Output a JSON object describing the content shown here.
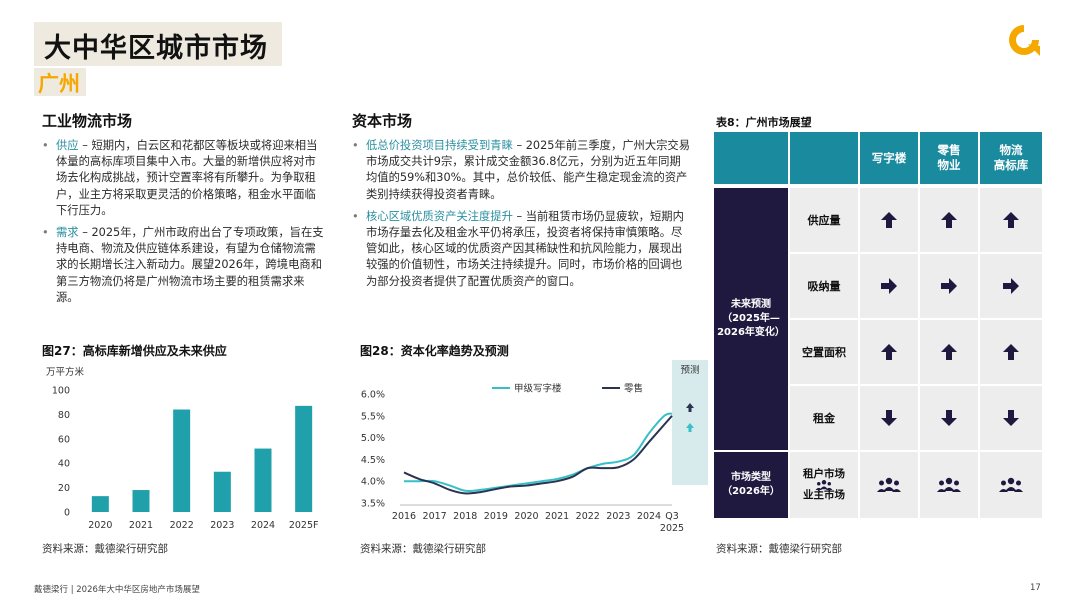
{
  "header": {
    "title": "大中华区城市市场",
    "subtitle": "广州"
  },
  "colors": {
    "accent_yellow": "#f5a800",
    "teal": "#1a8a9e",
    "navy": "#20193f",
    "bar": "#20a0aa",
    "line_office": "#36bfc8",
    "line_retail": "#2a3350"
  },
  "left_section": {
    "heading": "工业物流市场",
    "bullets": [
      {
        "keyword": "供应",
        "text": " – 短期内，白云区和花都区等板块或将迎来相当体量的高标库项目集中入市。大量的新增供应将对市场去化构成挑战，预计空置率将有所攀升。为争取租户，业主方将采取更灵活的价格策略，租金水平面临下行压力。"
      },
      {
        "keyword": "需求",
        "text": " – 2025年，广州市政府出台了专项政策，旨在支持电商、物流及供应链体系建设，有望为仓储物流需求的长期增长注入新动力。展望2026年，跨境电商和第三方物流仍将是广州物流市场主要的租赁需求来源。"
      }
    ]
  },
  "middle_section": {
    "heading": "资本市场",
    "bullets": [
      {
        "keyword": "低总价投资项目持续受到青睐",
        "text": " – 2025年前三季度，广州大宗交易市场成交共计9宗，累计成交金额36.8亿元，分别为近五年同期均值的59%和30%。其中，总价较低、能产生稳定现金流的资产类别持续获得投资者青睐。"
      },
      {
        "keyword": "核心区域优质资产关注度提升",
        "text": " – 当前租赁市场仍显疲软，短期内市场存量去化及租金水平仍将承压，投资者将保持审慎策略。尽管如此，核心区域的优质资产因其稀缺性和抗风险能力，展现出较强的价值韧性，市场关注持续提升。同时，市场价格的回调也为部分投资者提供了配置优质资产的窗口。"
      }
    ]
  },
  "fig27": {
    "caption": "图27：高标库新增供应及未来供应",
    "source": "资料来源：戴德梁行研究部"
  },
  "fig28": {
    "caption": "图28：资本化率趋势及预测",
    "source": "资料来源：戴德梁行研究部",
    "forecast_label": "预测"
  },
  "chart_data": [
    {
      "type": "bar",
      "ylabel": "万平方米",
      "categories": [
        "2020",
        "2021",
        "2022",
        "2023",
        "2024",
        "2025F"
      ],
      "values": [
        13,
        18,
        84,
        33,
        52,
        87
      ],
      "ylim": [
        0,
        100
      ],
      "yticks": [
        "0",
        "20",
        "40",
        "60",
        "80",
        "100"
      ],
      "grid": false
    },
    {
      "type": "line",
      "categories": [
        "2016",
        "2017",
        "2018",
        "2019",
        "2020",
        "2021",
        "2022",
        "2023",
        "2024",
        "Q3 2025"
      ],
      "x": [
        2016,
        2016.5,
        2017,
        2017.5,
        2018,
        2018.5,
        2019,
        2019.5,
        2020,
        2020.5,
        2021,
        2021.5,
        2022,
        2022.5,
        2023,
        2023.5,
        2024,
        2024.5,
        2024.75
      ],
      "ylim": [
        3.5,
        6.0
      ],
      "yticks": [
        "3.5%",
        "4.0%",
        "4.5%",
        "5.0%",
        "5.5%",
        "6.0%"
      ],
      "legend_position": "top",
      "series": [
        {
          "name": "甲级写字楼",
          "values": [
            4.0,
            4.0,
            4.0,
            3.9,
            3.78,
            3.8,
            3.85,
            3.9,
            3.95,
            4.0,
            4.05,
            4.15,
            4.3,
            4.4,
            4.45,
            4.6,
            5.1,
            5.5,
            5.55
          ]
        },
        {
          "name": "零售",
          "values": [
            4.2,
            4.05,
            3.95,
            3.8,
            3.72,
            3.75,
            3.82,
            3.88,
            3.9,
            3.95,
            4.0,
            4.1,
            4.3,
            4.3,
            4.32,
            4.5,
            4.9,
            5.3,
            5.5
          ]
        }
      ],
      "forecast_arrows": [
        {
          "series": "零售",
          "direction": "up",
          "color": "#2a3350"
        },
        {
          "series": "甲级写字楼",
          "direction": "up",
          "color": "#36bfc8"
        }
      ]
    }
  ],
  "table": {
    "caption": "表8：广州市场展望",
    "columns": [
      "写字楼",
      "零售物业",
      "物流高标库"
    ],
    "columns_display": [
      "写字楼",
      "零售\n物业",
      "物流\n高标库"
    ],
    "group1_label": "未来预测\n（2025年—\n2026年变化）",
    "group2_label": "市场类型\n（2026年）",
    "rows": [
      {
        "label": "供应量",
        "icons": [
          "up-arrow-icon",
          "up-arrow-icon",
          "up-arrow-icon"
        ]
      },
      {
        "label": "吸纳量",
        "icons": [
          "right-arrow-icon",
          "right-arrow-icon",
          "right-arrow-icon"
        ]
      },
      {
        "label": "空置面积",
        "icons": [
          "up-arrow-icon",
          "up-arrow-icon",
          "up-arrow-icon"
        ]
      },
      {
        "label": "租金",
        "icons": [
          "down-arrow-icon",
          "down-arrow-icon",
          "down-arrow-icon"
        ]
      }
    ],
    "market_row": {
      "label_top": "租户市场",
      "label_bottom": "业主市场",
      "label_icon": "people-icon",
      "icons": [
        "people-icon",
        "people-icon",
        "people-icon"
      ]
    },
    "source": "资料来源：戴德梁行研究部"
  },
  "footer": {
    "text": "戴德梁行 | 2026年大中华区房地产市场展望",
    "page": "17"
  }
}
